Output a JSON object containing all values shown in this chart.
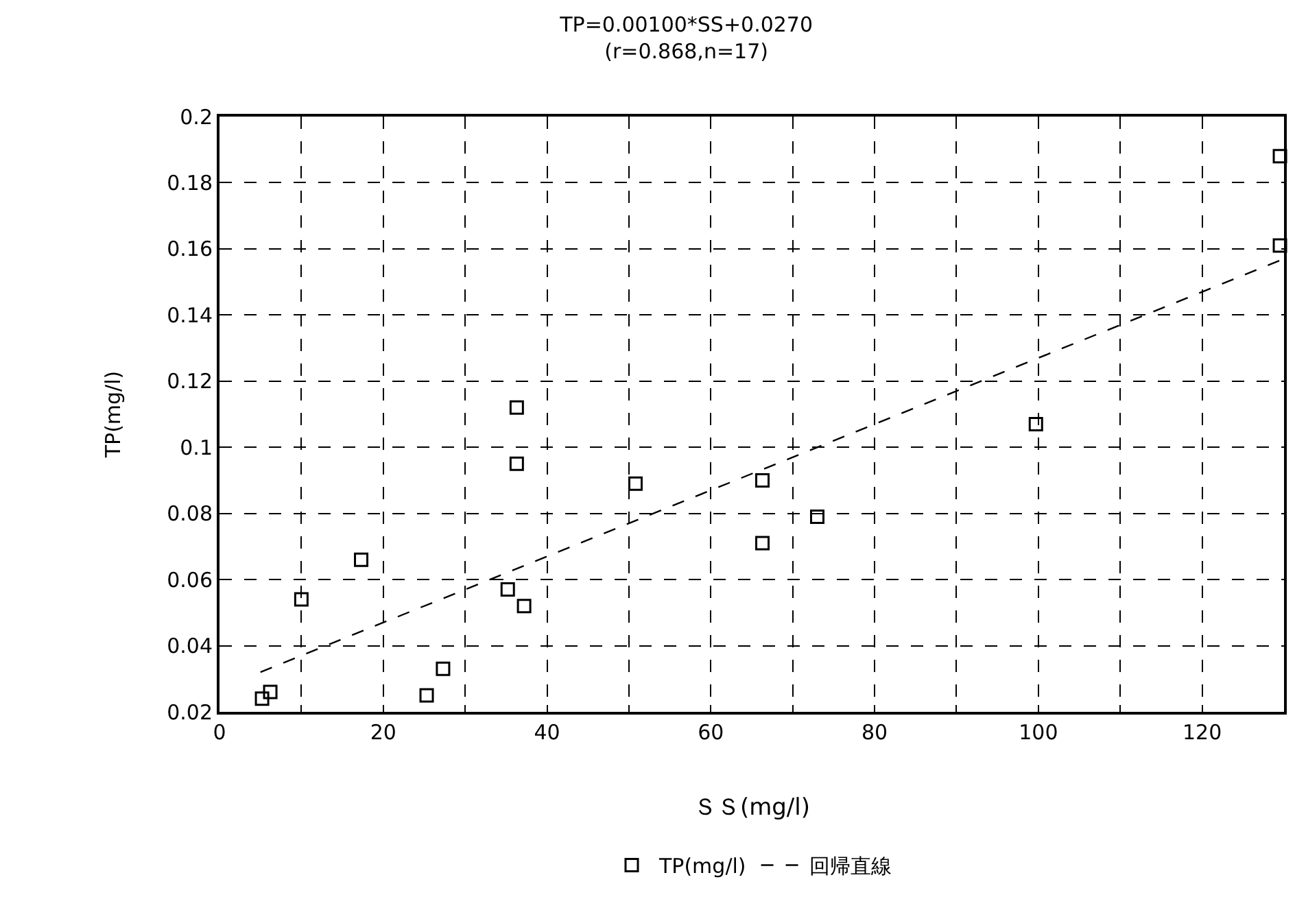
{
  "chart_data": {
    "type": "scatter",
    "title": "TP=0.00100*SS+0.0270",
    "subtitle": "(r=0.868,n=17)",
    "xlabel": "ＳＳ(mg/l)",
    "ylabel": "TP(mg/l)",
    "xlim": [
      0,
      130
    ],
    "ylim": [
      0.02,
      0.2
    ],
    "xticks": [
      0,
      {
        "value": 10,
        "label": null
      },
      20,
      {
        "value": 30,
        "label": null
      },
      40,
      {
        "value": 50,
        "label": null
      },
      60,
      {
        "value": 70,
        "label": null
      },
      80,
      {
        "value": 90,
        "label": null
      },
      100,
      {
        "value": 110,
        "label": null
      },
      120,
      {
        "value": 130,
        "label": null
      }
    ],
    "yticks": [
      0.02,
      0.04,
      0.06,
      0.08,
      0.1,
      0.12,
      0.14,
      0.16,
      0.18,
      0.2
    ],
    "grid": true,
    "legend": "bottom",
    "series": [
      {
        "name": "TP(mg/l)",
        "type": "scatter",
        "color": "#000000",
        "marker": "square",
        "x": [
          5.2,
          6.2,
          10,
          17.3,
          25.3,
          27.3,
          35.2,
          37.2,
          36.3,
          36.3,
          50.8,
          66.3,
          66.3,
          73,
          99.7,
          129.5,
          129.5
        ],
        "values": [
          0.024,
          0.026,
          0.054,
          0.066,
          0.025,
          0.033,
          0.057,
          0.052,
          0.095,
          0.112,
          0.089,
          0.09,
          0.071,
          0.079,
          0.107,
          0.161,
          0.188
        ]
      },
      {
        "name": "回帰直線",
        "type": "line",
        "color": "#000000",
        "marker": "none",
        "line_style": "dashed",
        "x": [
          5,
          130
        ],
        "values": [
          0.032,
          0.157
        ]
      }
    ]
  }
}
